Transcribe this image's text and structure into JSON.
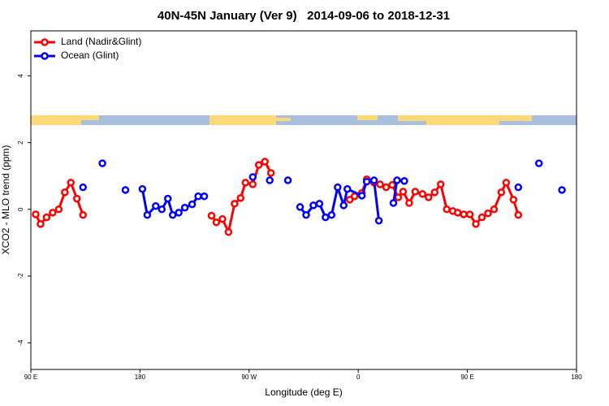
{
  "chart_data": {
    "type": "line",
    "title": "40N-45N January (Ver 9)   2014-09-06 to 2018-12-31",
    "x_label": "Longitude (deg E)",
    "y_label": "XCO2 - MLO trend (ppm)",
    "xlim": [
      90,
      540
    ],
    "ylim": [
      -4.8,
      5.35
    ],
    "xticks": [
      {
        "value": 90,
        "label": "90 E"
      },
      180,
      {
        "value": 270,
        "label": "90 W"
      },
      {
        "value": 360,
        "label": "0"
      },
      {
        "value": 450,
        "label": "90 E"
      },
      {
        "value": 540,
        "label": "180"
      }
    ],
    "yticks": [
      -4,
      -2,
      0,
      2,
      4
    ],
    "legend": "top-left",
    "series": [
      {
        "name": "Land (Nadir&Glint)",
        "color": "#ff0000",
        "x": [
          94,
          98,
          103,
          108,
          113,
          118,
          123,
          128,
          133,
          null,
          239,
          243,
          248,
          253,
          258,
          263,
          267,
          273,
          278,
          283,
          288,
          null,
          353,
          357,
          363,
          367,
          373,
          378,
          383,
          388,
          393,
          397,
          402,
          407,
          413,
          418,
          423,
          428,
          433,
          438,
          442,
          447,
          452,
          457,
          462,
          467,
          472,
          478,
          482,
          488,
          492
        ],
        "values": [
          -0.15,
          -0.44,
          -0.24,
          -0.1,
          0,
          0.51,
          0.8,
          0.32,
          -0.17,
          null,
          -0.19,
          -0.39,
          -0.29,
          -0.68,
          0.17,
          0.34,
          0.8,
          0.75,
          1.33,
          1.43,
          1.09,
          null,
          0.29,
          0.39,
          0.49,
          0.9,
          0.8,
          0.75,
          0.66,
          0.73,
          0.36,
          0.53,
          0.19,
          0.53,
          0.46,
          0.36,
          0.51,
          0.75,
          0,
          -0.05,
          -0.1,
          -0.15,
          -0.15,
          -0.44,
          -0.24,
          -0.12,
          0,
          0.51,
          0.8,
          0.29,
          -0.17
        ]
      },
      {
        "name": "Ocean (Glint)",
        "color": "#0000ff",
        "x": [
          133,
          null,
          149,
          null,
          168,
          null,
          182,
          186,
          193,
          198,
          203,
          207,
          212,
          217,
          223,
          228,
          233,
          null,
          273,
          null,
          287,
          null,
          302,
          null,
          312,
          317,
          323,
          328,
          333,
          338,
          343,
          348,
          351,
          363,
          367,
          373,
          377,
          null,
          389,
          392,
          398,
          null,
          492,
          null,
          509,
          null,
          528
        ],
        "values": [
          0.66,
          null,
          1.38,
          null,
          0.58,
          null,
          0.61,
          -0.17,
          0.1,
          0,
          0.32,
          -0.17,
          -0.1,
          0.05,
          0.15,
          0.39,
          0.39,
          null,
          0.97,
          null,
          0.87,
          null,
          0.87,
          null,
          0.07,
          -0.17,
          0.12,
          0.17,
          -0.24,
          -0.17,
          0.66,
          0.12,
          0.61,
          0.41,
          0.83,
          0.87,
          -0.34,
          null,
          0.19,
          0.87,
          0.85,
          null,
          0.66,
          null,
          1.38,
          null,
          0.58
        ]
      }
    ]
  }
}
